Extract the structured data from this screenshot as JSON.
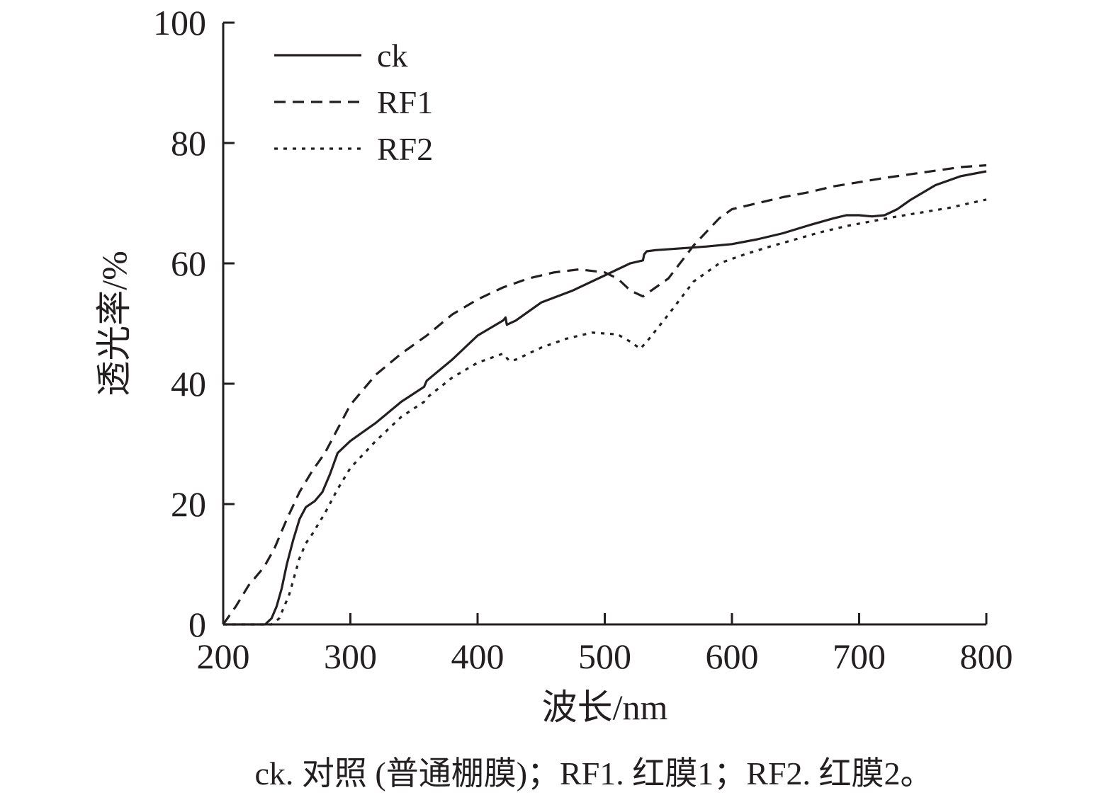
{
  "chart_data": {
    "type": "line",
    "xlabel": "波长/nm",
    "ylabel": "透光率/%",
    "xlim": [
      200,
      800
    ],
    "ylim": [
      0,
      100
    ],
    "xticks": [
      200,
      300,
      400,
      500,
      600,
      700,
      800
    ],
    "yticks": [
      0,
      20,
      40,
      60,
      80,
      100
    ],
    "xtick_labels": [
      "200",
      "300",
      "400",
      "500",
      "600",
      "700",
      "800"
    ],
    "ytick_labels": [
      "0",
      "20",
      "40",
      "60",
      "80",
      "100"
    ],
    "legend_position": "top-left",
    "grid": false,
    "series": [
      {
        "name": "ck",
        "style": "solid",
        "color": "#231f20",
        "x": [
          200,
          225,
          233,
          238,
          242,
          246,
          250,
          255,
          260,
          265,
          272,
          278,
          284,
          290,
          300,
          320,
          340,
          358,
          360,
          380,
          400,
          420,
          422,
          423,
          430,
          450,
          475,
          500,
          510,
          520,
          530,
          531,
          533,
          540,
          560,
          580,
          600,
          620,
          640,
          660,
          680,
          690,
          700,
          710,
          720,
          730,
          740,
          760,
          780,
          800
        ],
        "y": [
          0,
          0,
          0,
          1,
          3,
          6,
          10,
          14,
          17.5,
          19.5,
          20.5,
          22,
          25,
          28.5,
          30.5,
          33.5,
          37,
          39.5,
          40.5,
          44,
          48,
          50.5,
          51,
          49.8,
          50.5,
          53.5,
          55.5,
          58,
          59,
          60,
          60.5,
          61.5,
          62,
          62.2,
          62.5,
          62.8,
          63.2,
          64,
          65,
          66.3,
          67.5,
          68,
          68,
          67.8,
          68,
          69,
          70.5,
          73,
          74.5,
          75.3
        ]
      },
      {
        "name": "RF1",
        "style": "dashed",
        "color": "#231f20",
        "x": [
          200,
          210,
          220,
          232,
          240,
          250,
          260,
          270,
          280,
          290,
          300,
          320,
          340,
          360,
          380,
          400,
          420,
          440,
          460,
          480,
          500,
          510,
          520,
          530,
          550,
          570,
          590,
          600,
          620,
          640,
          660,
          680,
          700,
          720,
          740,
          760,
          780,
          800
        ],
        "y": [
          0,
          3,
          6.5,
          9.5,
          12.5,
          17.5,
          22,
          25.5,
          28.5,
          32.5,
          36.5,
          41.5,
          45,
          48,
          51.5,
          54,
          56,
          57.5,
          58.5,
          59,
          58.5,
          57.5,
          55.5,
          54.5,
          57.5,
          63,
          67.5,
          69,
          70,
          71,
          71.8,
          72.8,
          73.5,
          74.2,
          74.8,
          75.4,
          76,
          76.3
        ]
      },
      {
        "name": "RF2",
        "style": "dotted",
        "color": "#231f20",
        "x": [
          200,
          238,
          244,
          248,
          252,
          256,
          260,
          265,
          270,
          280,
          290,
          300,
          320,
          340,
          358,
          362,
          380,
          400,
          420,
          422,
          425,
          430,
          450,
          470,
          490,
          510,
          520,
          528,
          535,
          550,
          570,
          590,
          610,
          630,
          650,
          670,
          690,
          710,
          730,
          750,
          770,
          800
        ],
        "y": [
          0,
          0,
          1,
          3,
          5,
          8,
          11,
          13.5,
          15,
          18.5,
          22.5,
          26,
          30.5,
          34.5,
          37,
          38,
          41,
          43.5,
          45,
          44.5,
          43.8,
          44,
          46,
          47.5,
          48.5,
          48.2,
          47,
          45.8,
          47.5,
          51.5,
          57,
          60,
          61.5,
          62.8,
          64,
          65.2,
          66.2,
          67,
          67.8,
          68.5,
          69.2,
          70.6
        ]
      }
    ]
  },
  "caption": "ck. 对照 (普通棚膜)；RF1. 红膜1；RF2. 红膜2。"
}
